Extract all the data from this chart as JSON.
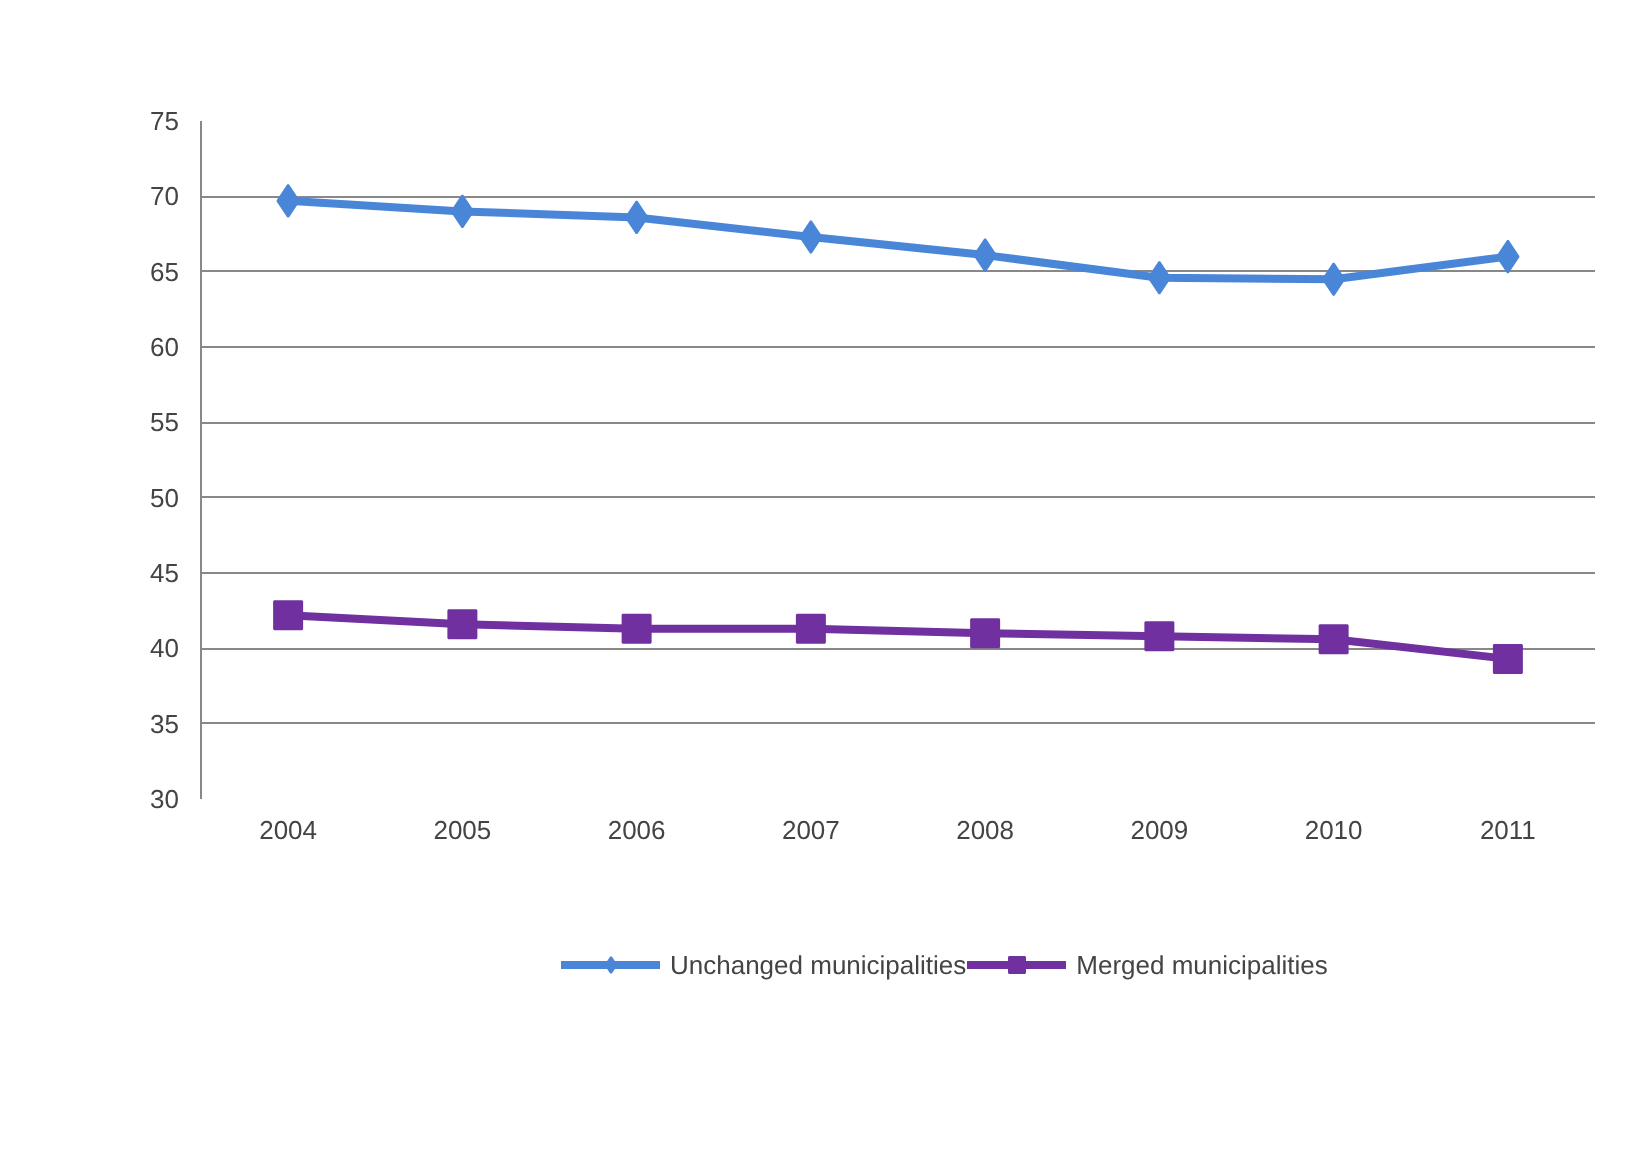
{
  "chart_data": {
    "type": "line",
    "categories": [
      "2004",
      "2005",
      "2006",
      "2007",
      "2008",
      "2009",
      "2010",
      "2011"
    ],
    "series": [
      {
        "name": "Unchanged municipalities",
        "color": "#4a86d8",
        "marker": "diamond",
        "values": [
          69.7,
          69.0,
          68.6,
          67.3,
          66.1,
          64.6,
          64.5,
          66.0
        ]
      },
      {
        "name": "Merged municipalities",
        "color": "#7030a0",
        "marker": "square",
        "values": [
          42.2,
          41.6,
          41.3,
          41.3,
          41.0,
          40.8,
          40.6,
          39.3
        ]
      }
    ],
    "ylim": [
      30,
      75
    ],
    "yticks": [
      30,
      35,
      40,
      45,
      50,
      55,
      60,
      65,
      70,
      75
    ],
    "grid": "y",
    "legend": "bottom",
    "line_style": "solid"
  }
}
